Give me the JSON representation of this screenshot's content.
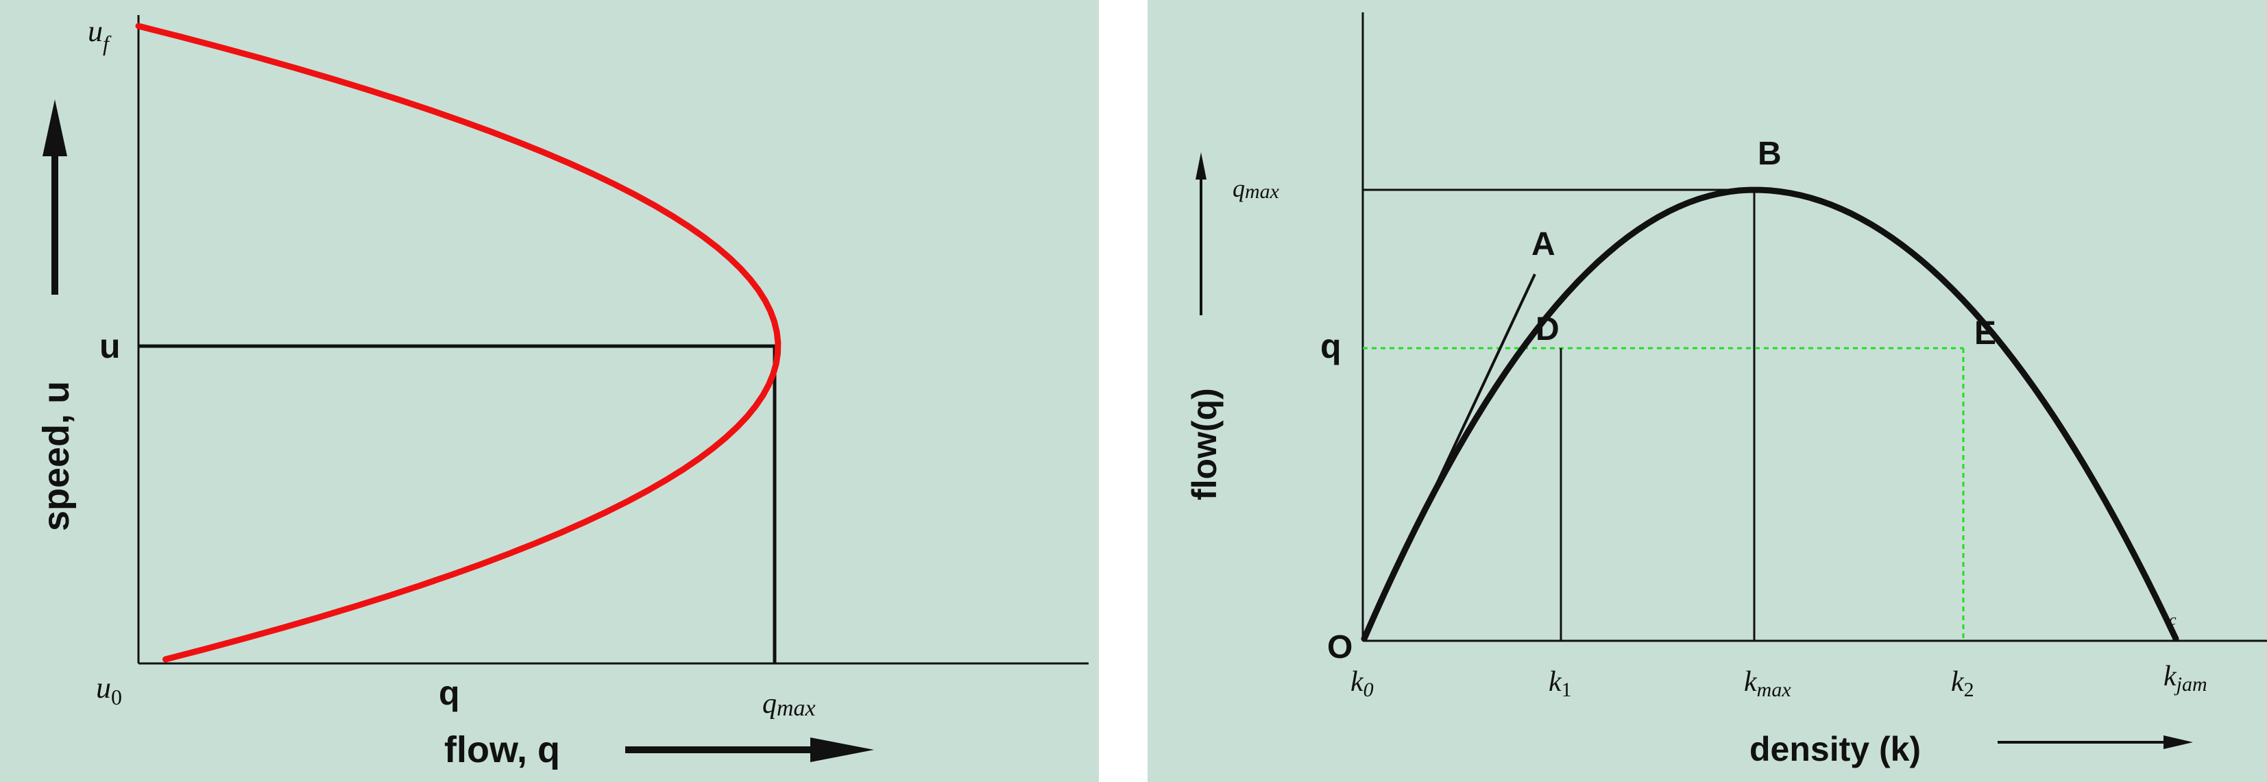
{
  "left_diagram": {
    "y_axis_label": "speed, u",
    "x_axis_label": "flow, q",
    "label_uf": "u",
    "label_uf_sub": "f",
    "label_u0": "u",
    "label_u0_sub": "0",
    "label_u": "u",
    "label_q": "q",
    "label_qmax": "q",
    "label_qmax_sub": "max",
    "curve_color": "#ee1111"
  },
  "right_diagram": {
    "y_axis_label": "flow(q)",
    "x_axis_label": "density (k)",
    "label_qmax": "q",
    "label_qmax_sub": "max",
    "label_q": "q",
    "label_O": "O",
    "point_A": "A",
    "point_B": "B",
    "point_D": "D",
    "point_E": "E",
    "tick_k0": "k",
    "tick_k0_sub": "0",
    "tick_k1": "k",
    "tick_k1_sub": "1",
    "tick_kmax": "k",
    "tick_kmax_sub": "max",
    "tick_k2": "k",
    "tick_k2_sub": "2",
    "tick_kjam": "k",
    "tick_kjam_sub": "jam",
    "tick_c": "c",
    "curve_color": "#111111",
    "guide_color": "#22dd22"
  }
}
